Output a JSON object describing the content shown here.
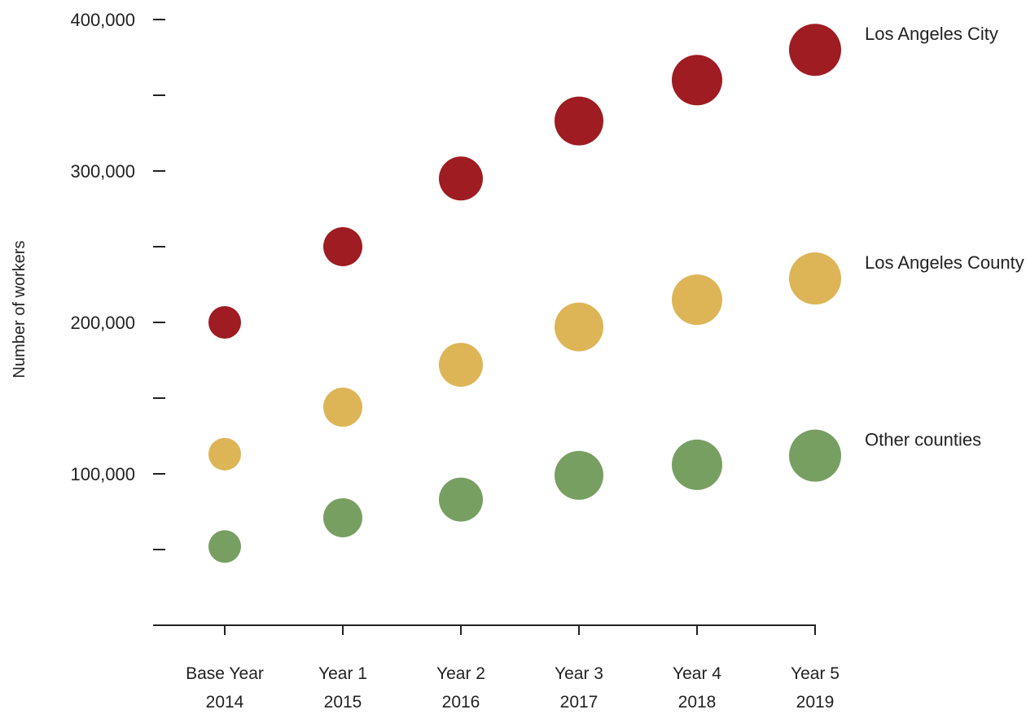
{
  "chart_data": {
    "type": "scatter",
    "title": "",
    "ylabel": "Number of workers",
    "xlabel": "",
    "categories": [
      {
        "line1": "Base Year",
        "line2": "2014"
      },
      {
        "line1": "Year 1",
        "line2": "2015"
      },
      {
        "line1": "Year 2",
        "line2": "2016"
      },
      {
        "line1": "Year 3",
        "line2": "2017"
      },
      {
        "line1": "Year 4",
        "line2": "2018"
      },
      {
        "line1": "Year 5",
        "line2": "2019"
      }
    ],
    "ylim": [
      0,
      400000
    ],
    "y_ticks_labeled": [
      {
        "value": 100000,
        "label": "100,000"
      },
      {
        "value": 200000,
        "label": "200,000"
      },
      {
        "value": 300000,
        "label": "300,000"
      },
      {
        "value": 400000,
        "label": "400,000"
      }
    ],
    "y_ticks_minor": [
      50000,
      150000,
      250000,
      350000
    ],
    "grid": false,
    "legend_placement": "right",
    "series": [
      {
        "name": "Los Angeles City",
        "color": "#9E1C22",
        "values": [
          200000,
          250000,
          295000,
          333000,
          360000,
          380000
        ]
      },
      {
        "name": "Los Angeles County",
        "color": "#DDB556",
        "values": [
          113000,
          144000,
          172000,
          197000,
          215000,
          229000
        ]
      },
      {
        "name": "Other counties",
        "color": "#789F62",
        "values": [
          52000,
          71000,
          83000,
          99000,
          106000,
          112000
        ]
      }
    ]
  }
}
